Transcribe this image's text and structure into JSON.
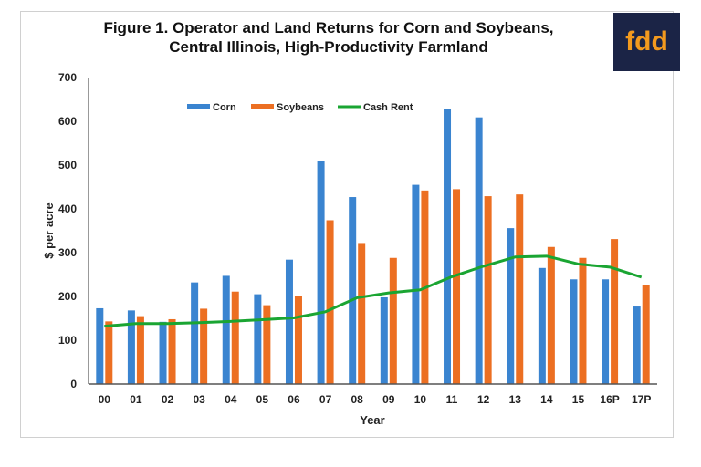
{
  "logo_text": "fdd",
  "chart_data": {
    "type": "bar",
    "title": "Figure 1. Operator and Land Returns for Corn and Soybeans, Central Illinois, High-Productivity Farmland",
    "title_lines": [
      "Figure 1. Operator and Land Returns for Corn and Soybeans,",
      "Central Illinois, High-Productivity Farmland"
    ],
    "xlabel": "Year",
    "ylabel": "$ per acre",
    "ylim": [
      0,
      700
    ],
    "yticks": [
      0,
      100,
      200,
      300,
      400,
      500,
      600,
      700
    ],
    "categories": [
      "00",
      "01",
      "02",
      "03",
      "04",
      "05",
      "06",
      "07",
      "08",
      "09",
      "10",
      "11",
      "12",
      "13",
      "14",
      "15",
      "16P",
      "17P"
    ],
    "legend_position": "top-center",
    "grid": false,
    "series": [
      {
        "name": "Corn",
        "type": "bar",
        "color": "#3a84d0",
        "values": [
          173,
          168,
          142,
          232,
          247,
          205,
          284,
          510,
          427,
          198,
          455,
          628,
          609,
          356,
          265,
          239,
          239,
          177
        ]
      },
      {
        "name": "Soybeans",
        "type": "bar",
        "color": "#ec6f22",
        "values": [
          143,
          155,
          148,
          172,
          211,
          180,
          200,
          374,
          322,
          288,
          442,
          445,
          429,
          433,
          313,
          288,
          331,
          226
        ]
      },
      {
        "name": "Cash Rent",
        "type": "line",
        "color": "#1aa532",
        "values": [
          132,
          138,
          138,
          140,
          143,
          147,
          151,
          165,
          197,
          208,
          215,
          245,
          269,
          290,
          292,
          274,
          267,
          244
        ]
      }
    ]
  }
}
